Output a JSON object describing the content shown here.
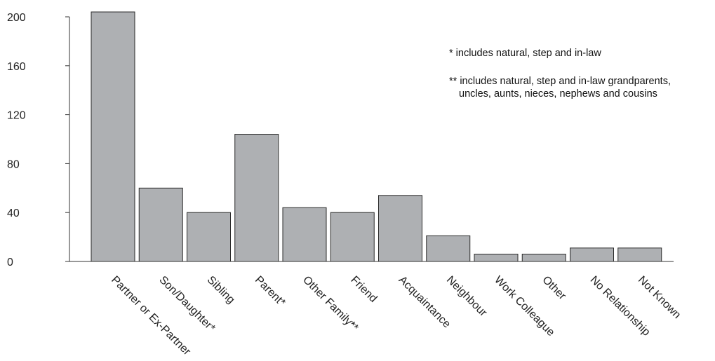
{
  "chart_data": {
    "type": "bar",
    "categories": [
      "Partner or Ex-Partner",
      "Son/Daughter*",
      "Sibling",
      "Parent*",
      "Other Family**",
      "Friend",
      "Acquaintance",
      "Neighbour",
      "Work Colleague",
      "Other",
      "No Relationship",
      "Not Known"
    ],
    "values": [
      204,
      60,
      40,
      104,
      44,
      40,
      54,
      21,
      6,
      6,
      11,
      11
    ],
    "yticks": [
      0,
      40,
      80,
      120,
      160,
      200
    ],
    "ylim": [
      0,
      200
    ],
    "grid": false,
    "bar_color": "#aeb0b3",
    "annotations": [
      "* includes natural, step and in-law",
      "** includes natural, step and in-law grandparents,",
      "uncles, aunts, nieces, nephews and cousins"
    ]
  }
}
